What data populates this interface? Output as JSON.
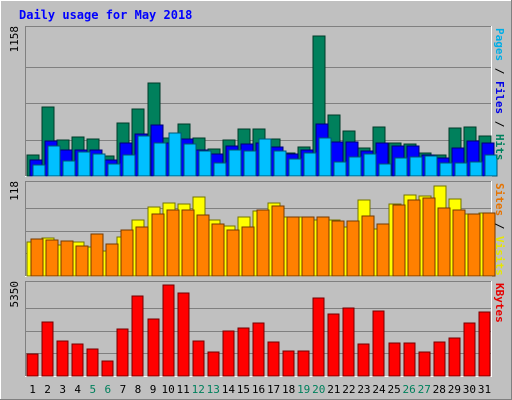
{
  "chart_data": {
    "type": "bar",
    "title": "Daily usage for May 2018",
    "categories": [
      "1",
      "2",
      "3",
      "4",
      "5",
      "6",
      "7",
      "8",
      "9",
      "10",
      "11",
      "12",
      "13",
      "14",
      "15",
      "16",
      "17",
      "18",
      "19",
      "20",
      "21",
      "22",
      "23",
      "24",
      "25",
      "26",
      "27",
      "28",
      "29",
      "30",
      "31"
    ],
    "weekend_days": [
      "5",
      "6",
      "12",
      "13",
      "19",
      "20",
      "26",
      "27"
    ],
    "panels": [
      {
        "id": "hits",
        "max_label": "1158",
        "ylim": [
          0,
          1158
        ],
        "axis_label_parts": [
          "Pages",
          "Files",
          "Hits"
        ],
        "series": [
          {
            "name": "Hits",
            "color": "#00805c",
            "values": [
              168,
              550,
              285,
              308,
              290,
              155,
              420,
              530,
              735,
              305,
              413,
              300,
              215,
              285,
              370,
              375,
              295,
              183,
              230,
              1110,
              480,
              355,
              220,
              385,
              260,
              255,
              185,
              165,
              380,
              385,
              320
            ]
          },
          {
            "name": "Files",
            "color": "#0000ff",
            "values": [
              130,
              280,
              210,
              205,
              205,
              125,
              260,
              330,
              405,
              265,
              295,
              210,
              175,
              235,
              255,
              260,
              230,
              175,
              210,
              410,
              270,
              270,
              195,
              265,
              235,
              235,
              170,
              145,
              220,
              275,
              260
            ]
          },
          {
            "name": "Pages",
            "color": "#00c0ff",
            "values": [
              90,
              240,
              120,
              190,
              175,
              95,
              170,
              315,
              260,
              340,
              250,
              200,
              100,
              205,
              200,
              290,
              200,
              135,
              180,
              300,
              115,
              150,
              175,
              95,
              145,
              150,
              160,
              100,
              105,
              110,
              165
            ]
          }
        ]
      },
      {
        "id": "visits",
        "max_label": "118",
        "ylim": [
          0,
          118
        ],
        "axis_label_parts": [
          "Sites",
          "Visits"
        ],
        "series": [
          {
            "name": "Visits",
            "color": "#ffff00",
            "values": [
              44,
              49,
              40,
              44,
              37,
              32,
              50,
              72,
              89,
              95,
              93,
              102,
              72,
              65,
              77,
              84,
              95,
              77,
              76,
              72,
              72,
              64,
              98,
              61,
              94,
              105,
              104,
              117,
              100,
              81,
              82
            ]
          },
          {
            "name": "Sites",
            "color": "#ff8000",
            "values": [
              48,
              47,
              46,
              39,
              54,
              42,
              60,
              64,
              81,
              85,
              85,
              79,
              67,
              59,
              64,
              85,
              91,
              76,
              76,
              76,
              71,
              71,
              78,
              68,
              92,
              98,
              101,
              88,
              85,
              81,
              82
            ]
          }
        ]
      },
      {
        "id": "kbytes",
        "max_label": "5350",
        "ylim": [
          0,
          5350
        ],
        "axis_label_parts": [
          "KBytes"
        ],
        "series": [
          {
            "name": "KBytes",
            "color": "#ff0000",
            "values": [
              1280,
              3180,
              2080,
              1880,
              1600,
              880,
              2760,
              4680,
              3350,
              5340,
              4870,
              2080,
              1400,
              2670,
              2830,
              3130,
              1980,
              1450,
              1450,
              4600,
              3640,
              4000,
              1900,
              3850,
              1950,
              1930,
              1430,
              1980,
              2220,
              3090,
              3790
            ]
          }
        ]
      }
    ]
  }
}
